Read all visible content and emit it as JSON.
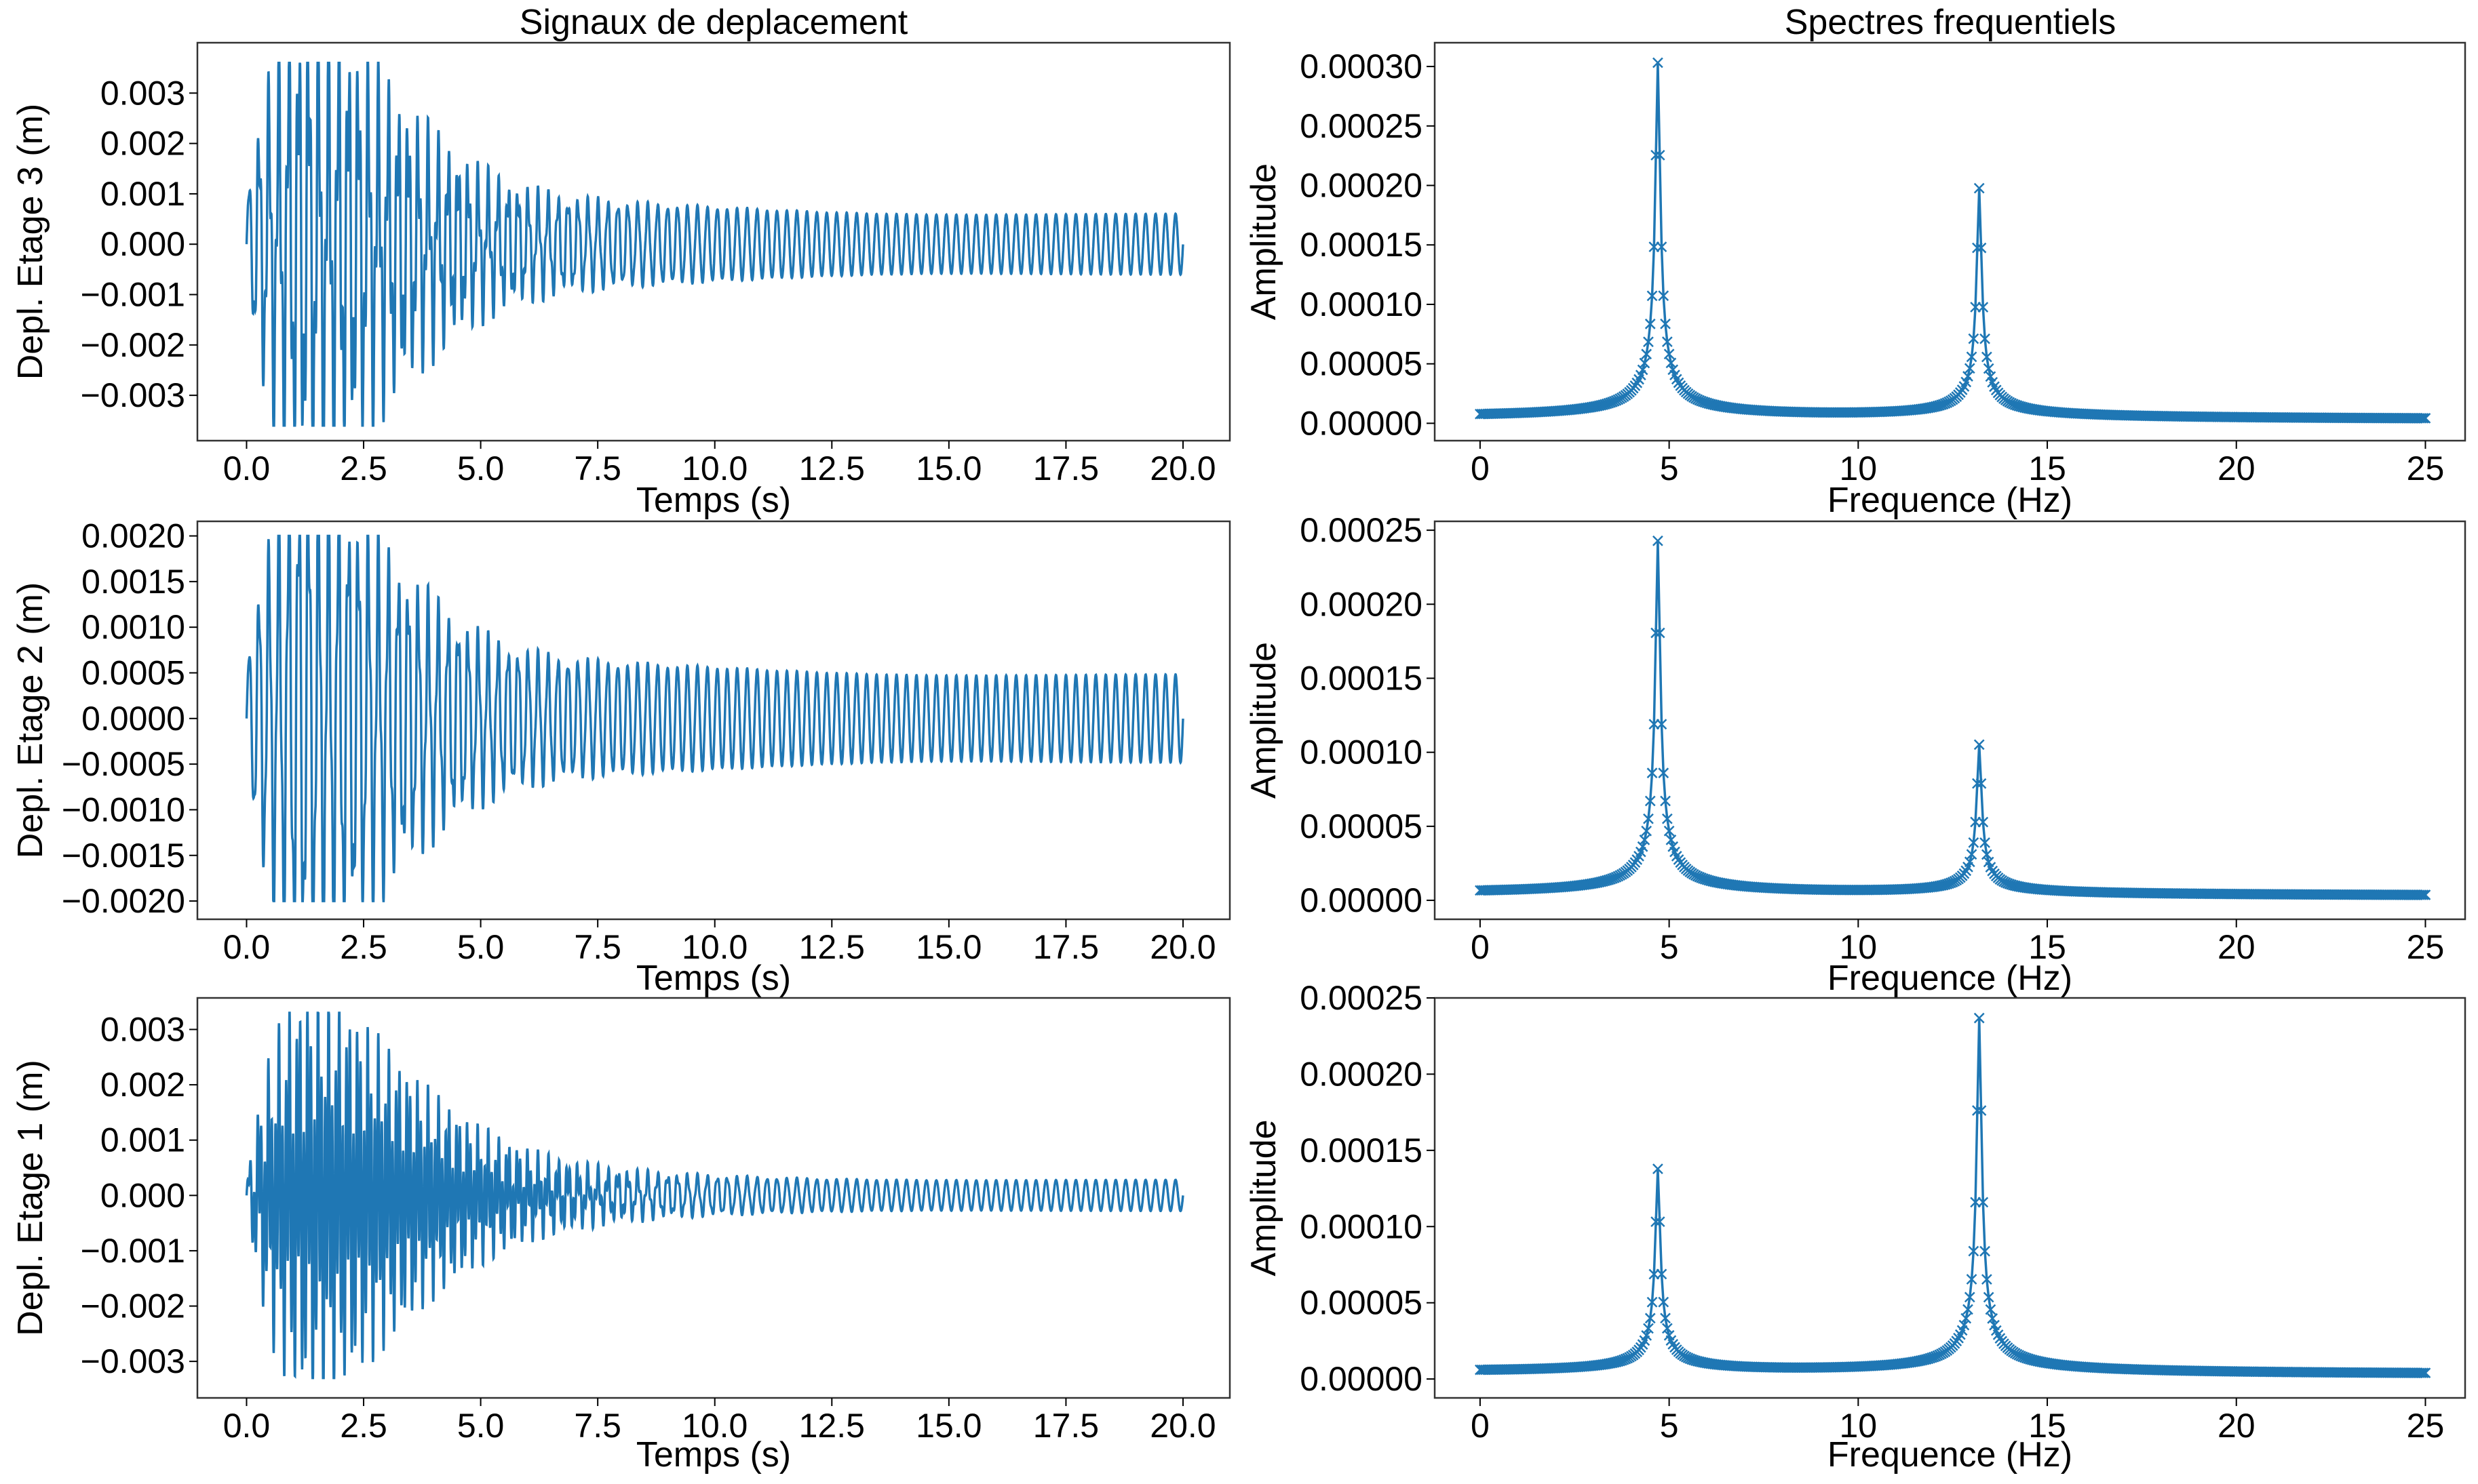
{
  "line_color": "#1f77b4",
  "column_titles": [
    "Signaux de deplacement",
    "Spectres frequentiels"
  ],
  "chart_data": [
    {
      "id": "sig3",
      "type": "line",
      "title": "Signaux de deplacement",
      "xlabel": "Temps (s)",
      "ylabel": "Depl. Etage 3 (m)",
      "xlim": [
        -1.05,
        21.0
      ],
      "ylim": [
        -0.0039,
        0.004
      ],
      "xticks": [
        0,
        2.5,
        5,
        7.5,
        10,
        12.5,
        15,
        17.5,
        20
      ],
      "xticklabels": [
        "0.0",
        "2.5",
        "5.0",
        "7.5",
        "10.0",
        "12.5",
        "15.0",
        "17.5",
        "20.0"
      ],
      "yticks": [
        -0.003,
        -0.002,
        -0.001,
        0,
        0.001,
        0.002,
        0.003
      ],
      "yticklabels": [
        "−0.003",
        "−0.002",
        "−0.001",
        "0.000",
        "0.001",
        "0.002",
        "0.003"
      ],
      "t_range": [
        0,
        20
      ],
      "modes": [
        {
          "f": 4.7,
          "transient": 0.0024,
          "steady": 0.0006
        },
        {
          "f": 13.2,
          "transient": 0.0016,
          "steady": 0.0
        }
      ],
      "peak_range": [
        -0.0036,
        0.0036
      ]
    },
    {
      "id": "spec3",
      "type": "line",
      "markers": "x",
      "xlabel": "Frequence (Hz)",
      "ylabel": "Amplitude",
      "xlim": [
        -1.2,
        26.05
      ],
      "ylim": [
        -1.46e-05,
        0.00032
      ],
      "xticks": [
        0,
        5,
        10,
        15,
        20,
        25
      ],
      "xticklabels": [
        "0",
        "5",
        "10",
        "15",
        "20",
        "25"
      ],
      "yticks": [
        0,
        5e-05,
        0.0001,
        0.00015,
        0.0002,
        0.00025,
        0.0003
      ],
      "yticklabels": [
        "0.00000",
        "0.00005",
        "0.00010",
        "0.00015",
        "0.00020",
        "0.00025",
        "0.00030"
      ],
      "f_range": [
        0,
        25
      ],
      "peaks": [
        {
          "f": 4.7,
          "amp": 0.000305
        },
        {
          "f": 13.2,
          "amp": 0.000197
        }
      ]
    },
    {
      "id": "sig2",
      "type": "line",
      "xlabel": "Temps (s)",
      "ylabel": "Depl. Etage 2 (m)",
      "xlim": [
        -1.05,
        21.0
      ],
      "ylim": [
        -0.0022,
        0.00216
      ],
      "xticks": [
        0,
        2.5,
        5,
        7.5,
        10,
        12.5,
        15,
        17.5,
        20
      ],
      "xticklabels": [
        "0.0",
        "2.5",
        "5.0",
        "7.5",
        "10.0",
        "12.5",
        "15.0",
        "17.5",
        "20.0"
      ],
      "yticks": [
        -0.002,
        -0.0015,
        -0.001,
        -0.0005,
        0,
        0.0005,
        0.001,
        0.0015,
        0.002
      ],
      "yticklabels": [
        "−0.0020",
        "−0.0015",
        "−0.0010",
        "−0.0005",
        "0.0000",
        "0.0005",
        "0.0010",
        "0.0015",
        "0.0020"
      ],
      "t_range": [
        0,
        20
      ],
      "modes": [
        {
          "f": 4.7,
          "transient": 0.0015,
          "steady": 0.00048
        },
        {
          "f": 13.2,
          "transient": 0.0006,
          "steady": 0.0
        }
      ],
      "peak_range": [
        -0.002,
        0.002
      ]
    },
    {
      "id": "spec2",
      "type": "line",
      "markers": "x",
      "xlabel": "Frequence (Hz)",
      "ylabel": "Amplitude",
      "xlim": [
        -1.2,
        26.05
      ],
      "ylim": [
        -1.28e-05,
        0.000256
      ],
      "xticks": [
        0,
        5,
        10,
        15,
        20,
        25
      ],
      "xticklabels": [
        "0",
        "5",
        "10",
        "15",
        "20",
        "25"
      ],
      "yticks": [
        0,
        5e-05,
        0.0001,
        0.00015,
        0.0002,
        0.00025
      ],
      "yticklabels": [
        "0.00000",
        "0.00005",
        "0.00010",
        "0.00015",
        "0.00020",
        "0.00025"
      ],
      "f_range": [
        0,
        25
      ],
      "peaks": [
        {
          "f": 4.7,
          "amp": 0.000244
        },
        {
          "f": 13.2,
          "amp": 0.000103
        }
      ]
    },
    {
      "id": "sig1",
      "type": "line",
      "xlabel": "Temps (s)",
      "ylabel": "Depl. Etage 1 (m)",
      "xlim": [
        -1.05,
        21.0
      ],
      "ylim": [
        -0.00366,
        0.00357
      ],
      "xticks": [
        0,
        2.5,
        5,
        7.5,
        10,
        12.5,
        15,
        17.5,
        20
      ],
      "xticklabels": [
        "0.0",
        "2.5",
        "5.0",
        "7.5",
        "10.0",
        "12.5",
        "15.0",
        "17.5",
        "20.0"
      ],
      "yticks": [
        -0.003,
        -0.002,
        -0.001,
        0,
        0.001,
        0.002,
        0.003
      ],
      "yticklabels": [
        "−0.003",
        "−0.002",
        "−0.001",
        "0.000",
        "0.001",
        "0.002",
        "0.003"
      ],
      "t_range": [
        0,
        20
      ],
      "modes": [
        {
          "f": 4.7,
          "transient": 0.0009,
          "steady": 0.00028
        },
        {
          "f": 13.2,
          "transient": 0.0025,
          "steady": 0.0
        }
      ],
      "peak_range": [
        -0.0033,
        0.0033
      ]
    },
    {
      "id": "spec1",
      "type": "line",
      "markers": "x",
      "xlabel": "Frequence (Hz)",
      "ylabel": "Amplitude",
      "xlim": [
        -1.2,
        26.05
      ],
      "ylim": [
        -1.24e-05,
        0.00025
      ],
      "xticks": [
        0,
        5,
        10,
        15,
        20,
        25
      ],
      "xticklabels": [
        "0",
        "5",
        "10",
        "15",
        "20",
        "25"
      ],
      "yticks": [
        0,
        5e-05,
        0.0001,
        0.00015,
        0.0002,
        0.00025
      ],
      "yticklabels": [
        "0.00000",
        "0.00005",
        "0.00010",
        "0.00015",
        "0.00020",
        "0.00025"
      ],
      "f_range": [
        0,
        25
      ],
      "peaks": [
        {
          "f": 4.7,
          "amp": 0.000136
        },
        {
          "f": 13.2,
          "amp": 0.000238
        }
      ]
    }
  ]
}
